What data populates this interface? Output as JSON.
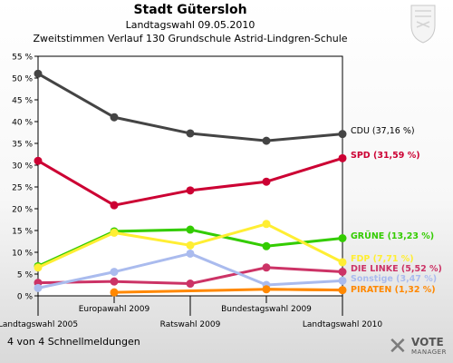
{
  "header": {
    "title": "Stadt Gütersloh",
    "line2": "Landtagswahl 09.05.2010",
    "line3": "Zweitstimmen Verlauf 130 Grundschule Astrid-Lindgren-Schule"
  },
  "footer": {
    "note": "4 von 4 Schnellmeldungen"
  },
  "branding": {
    "logo_word1": "VOTE",
    "logo_word2": "MANAGER",
    "logo_icon": "x-mark-icon",
    "crest_icon": "state-crest-icon"
  },
  "chart_data": {
    "type": "line",
    "categories": [
      "Landtagswahl 2005",
      "Europawahl 2009",
      "Ratswahl 2009",
      "Bundestagswahl 2009",
      "Landtagswahl 2010"
    ],
    "ylim": [
      0,
      55
    ],
    "yticks": [
      "0 %",
      "5 %",
      "10 %",
      "15 %",
      "20 %",
      "25 %",
      "30 %",
      "35 %",
      "40 %",
      "45 %",
      "50 %",
      "55 %"
    ],
    "grid": false,
    "series": [
      {
        "name": "CDU (37,16 %)",
        "color": "#444444",
        "values": [
          51.0,
          41.0,
          37.3,
          35.6,
          37.16
        ]
      },
      {
        "name": "SPD (31,59 %)",
        "color": "#cc0033",
        "values": [
          31.0,
          20.8,
          24.2,
          26.2,
          31.59
        ]
      },
      {
        "name": "GRÜNE (13,23 %)",
        "color": "#33cc00",
        "values": [
          6.8,
          14.8,
          15.2,
          11.4,
          13.23
        ]
      },
      {
        "name": "FDP (7,71 %)",
        "color": "#ffee33",
        "values": [
          6.5,
          14.5,
          11.6,
          16.5,
          7.71
        ]
      },
      {
        "name": "DIE LINKE (5,52 %)",
        "color": "#cc3366",
        "values": [
          3.0,
          3.3,
          2.8,
          6.5,
          5.52
        ]
      },
      {
        "name": "Sonstige (3,47 %)",
        "color": "#aabbee",
        "values": [
          1.8,
          5.5,
          9.7,
          2.5,
          3.47
        ]
      },
      {
        "name": "PIRATEN (1,32 %)",
        "color": "#ff8800",
        "values": [
          null,
          0.8,
          null,
          1.5,
          1.32
        ]
      }
    ]
  }
}
